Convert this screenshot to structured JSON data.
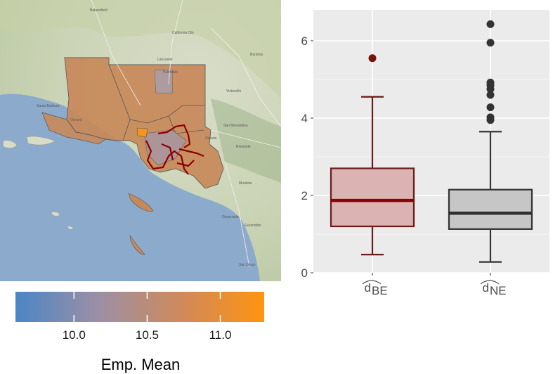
{
  "map": {
    "place_labels": [
      "Bakersfield",
      "Palmdale",
      "Lancaster",
      "California City",
      "Victorville",
      "Barstow",
      "Santa Barbara",
      "Oxnard",
      "San Bernardino",
      "Ontario",
      "Riverside",
      "Murrieta",
      "Escondido",
      "Oceanside",
      "San Diego"
    ],
    "region_fill_color": "#c8895a",
    "highlight_color": "#8b0000",
    "peak_region_color": "#f7941d",
    "sea_color": "#8caacb"
  },
  "legend": {
    "title": "Emp. Mean",
    "gradient": [
      "#4a86c5",
      "#9b8fa6",
      "#d48a54",
      "#ff9410"
    ],
    "range": [
      9.6,
      11.3
    ],
    "ticks": [
      {
        "value": 10.0,
        "label": "10.0"
      },
      {
        "value": 10.5,
        "label": "10.5"
      },
      {
        "value": 11.0,
        "label": "11.0"
      }
    ]
  },
  "chart_data": {
    "type": "boxplot",
    "ylim": [
      0,
      6.8
    ],
    "yticks": [
      {
        "value": 0,
        "label": "0"
      },
      {
        "value": 2,
        "label": "2"
      },
      {
        "value": 4,
        "label": "4"
      },
      {
        "value": 6,
        "label": "6"
      }
    ],
    "grid": true,
    "panel_background": "#ebebeb",
    "categories": [
      {
        "base": "d",
        "sub": "BE"
      },
      {
        "base": "d",
        "sub": "NE"
      }
    ],
    "boxes": [
      {
        "category": "BE",
        "lower_whisker": 0.47,
        "q1": 1.2,
        "median": 1.87,
        "q3": 2.7,
        "upper_whisker": 4.55,
        "outliers": [
          5.55
        ],
        "fill": "#dbb3b3",
        "stroke": "#6b1a1a",
        "median_color": "#8b0000",
        "outlier_color": "#7a1010"
      },
      {
        "category": "NE",
        "lower_whisker": 0.28,
        "q1": 1.13,
        "median": 1.54,
        "q3": 2.15,
        "upper_whisker": 3.65,
        "outliers": [
          3.95,
          4.02,
          4.28,
          4.6,
          4.75,
          4.85,
          4.92,
          5.95,
          6.43
        ],
        "fill": "#c6c6c6",
        "stroke": "#333333",
        "median_color": "#2e2e2e",
        "outlier_color": "#333333"
      }
    ]
  }
}
